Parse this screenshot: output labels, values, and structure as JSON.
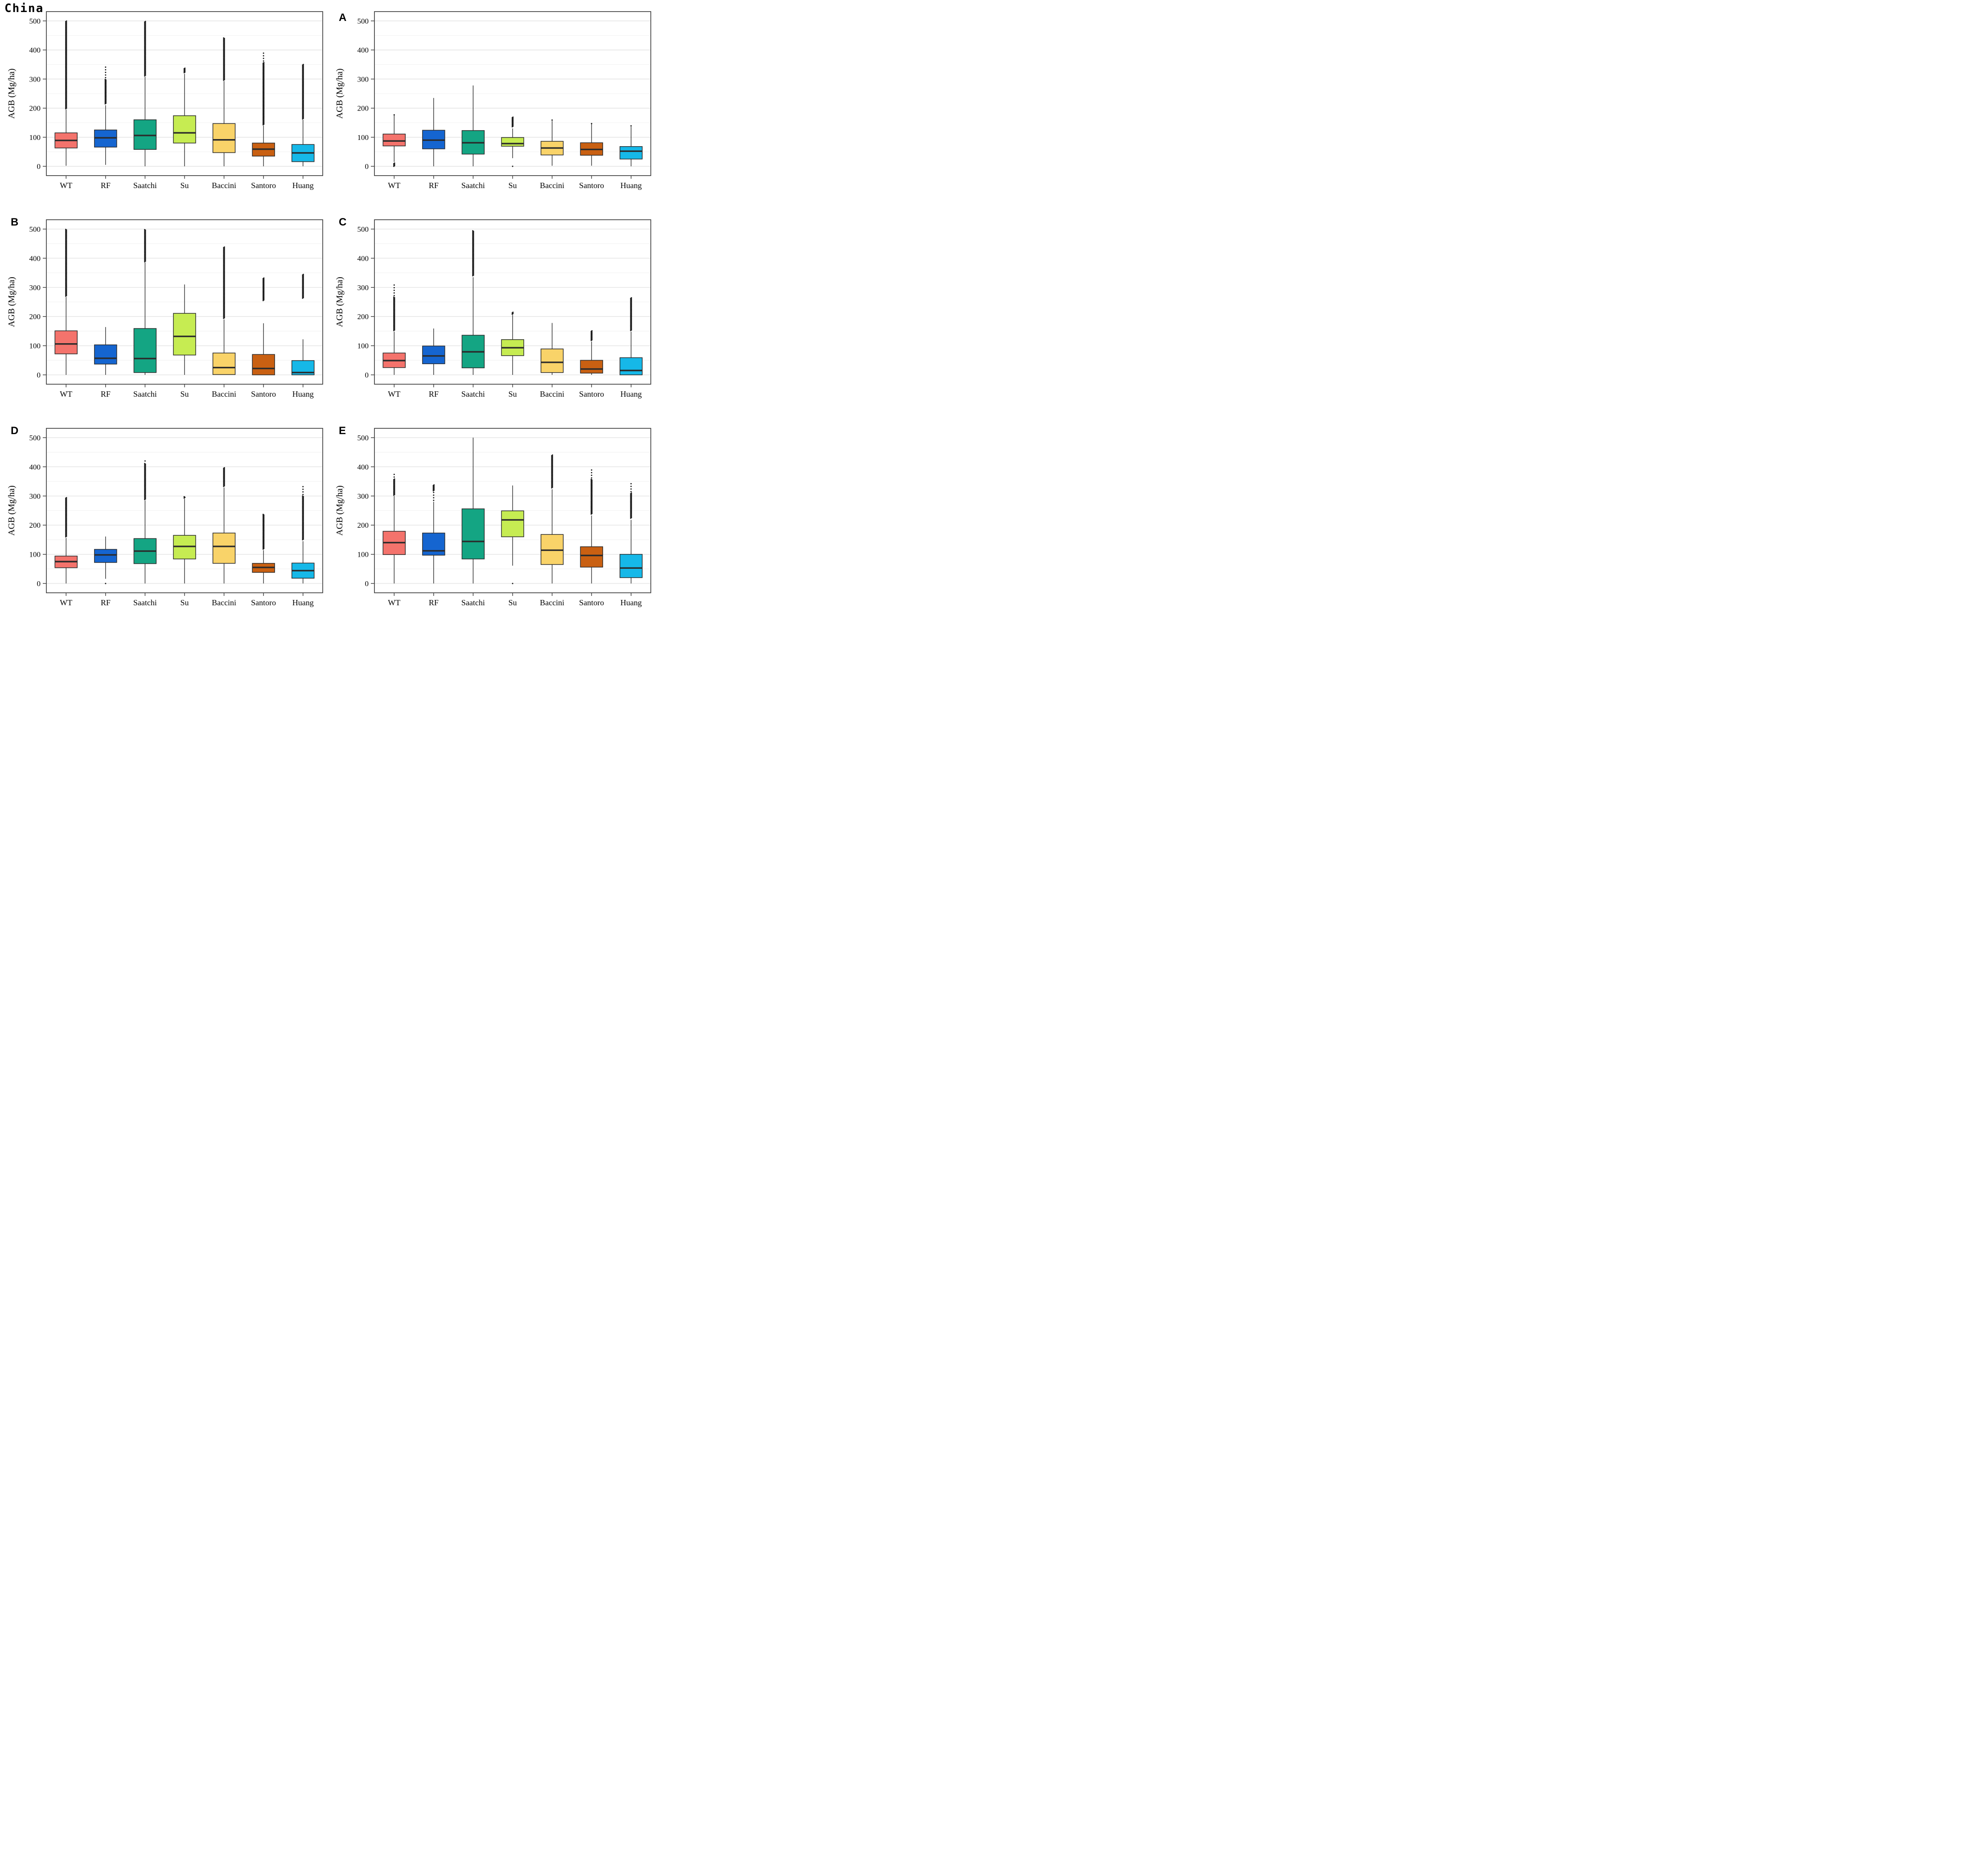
{
  "figure": {
    "ylabel": "AGB (Mg/ha)",
    "y_ticks": [
      0,
      100,
      200,
      300,
      400,
      500
    ],
    "ylim": [
      -32,
      532
    ],
    "categories": [
      "WT",
      "RF",
      "Saatchi",
      "Su",
      "Baccini",
      "Santoro",
      "Huang"
    ],
    "method_colors": {
      "WT": "#F4736C",
      "RF": "#1565D0",
      "Saatchi": "#14A583",
      "Su": "#C6EC52",
      "Baccini": "#F9D369",
      "Santoro": "#C96012",
      "Huang": "#16B8E8"
    },
    "grid_major_color": "#E3E3E3",
    "grid_minor_color": "#F1F1F1",
    "frame_color": "#3F3F3F",
    "median_color": "#2B2B2B"
  },
  "chart_data": [
    {
      "label": "China",
      "type": "box",
      "boxes": [
        {
          "method": "WT",
          "whisker_low": 2,
          "q1": 63,
          "median": 89,
          "q3": 115,
          "whisker_high": 195,
          "outliers_high": [
            [
              198,
              500,
              "dense"
            ]
          ],
          "outliers_low": []
        },
        {
          "method": "RF",
          "whisker_low": 5,
          "q1": 66,
          "median": 98,
          "q3": 125,
          "whisker_high": 210,
          "outliers_high": [
            [
              215,
              300,
              "dense"
            ],
            [
              305,
              345,
              "sparse"
            ]
          ],
          "outliers_low": []
        },
        {
          "method": "Saatchi",
          "whisker_low": 0,
          "q1": 58,
          "median": 106,
          "q3": 160,
          "whisker_high": 308,
          "outliers_high": [
            [
              311,
              500,
              "dense"
            ]
          ],
          "outliers_low": []
        },
        {
          "method": "Su",
          "whisker_low": 0,
          "q1": 80,
          "median": 115,
          "q3": 174,
          "whisker_high": 318,
          "outliers_high": [
            [
              322,
              338,
              "dense"
            ]
          ],
          "outliers_low": []
        },
        {
          "method": "Baccini",
          "whisker_low": 0,
          "q1": 47,
          "median": 91,
          "q3": 147,
          "whisker_high": 293,
          "outliers_high": [
            [
              296,
              442,
              "dense"
            ]
          ],
          "outliers_low": []
        },
        {
          "method": "Santoro",
          "whisker_low": 0,
          "q1": 35,
          "median": 59,
          "q3": 80,
          "whisker_high": 140,
          "outliers_high": [
            [
              143,
              357,
              "dense"
            ],
            [
              362,
              394,
              "sparse"
            ]
          ],
          "outliers_low": []
        },
        {
          "method": "Huang",
          "whisker_low": 0,
          "q1": 16,
          "median": 46,
          "q3": 75,
          "whisker_high": 160,
          "outliers_high": [
            [
              163,
              352,
              "dense"
            ]
          ],
          "outliers_low": []
        }
      ]
    },
    {
      "label": "A",
      "type": "box",
      "boxes": [
        {
          "method": "WT",
          "whisker_low": 15,
          "q1": 70,
          "median": 87,
          "q3": 111,
          "whisker_high": 175,
          "outliers_high": [
            [
              177,
              181,
              "sparse"
            ]
          ],
          "outliers_low": [
            [
              0,
              12,
              "dense"
            ]
          ]
        },
        {
          "method": "RF",
          "whisker_low": 0,
          "q1": 60,
          "median": 90,
          "q3": 124,
          "whisker_high": 235,
          "outliers_high": [],
          "outliers_low": []
        },
        {
          "method": "Saatchi",
          "whisker_low": 0,
          "q1": 42,
          "median": 81,
          "q3": 123,
          "whisker_high": 278,
          "outliers_high": [],
          "outliers_low": []
        },
        {
          "method": "Su",
          "whisker_low": 28,
          "q1": 69,
          "median": 78,
          "q3": 99,
          "whisker_high": 130,
          "outliers_high": [
            [
              136,
              170,
              "dense"
            ]
          ],
          "outliers_low": [
            [
              0,
              1,
              "sparse"
            ]
          ]
        },
        {
          "method": "Baccini",
          "whisker_low": 2,
          "q1": 39,
          "median": 63,
          "q3": 86,
          "whisker_high": 156,
          "outliers_high": [
            [
              159,
              161,
              "sparse"
            ]
          ],
          "outliers_low": []
        },
        {
          "method": "Santoro",
          "whisker_low": 2,
          "q1": 38,
          "median": 58,
          "q3": 81,
          "whisker_high": 145,
          "outliers_high": [
            [
              147,
              150,
              "sparse"
            ]
          ],
          "outliers_low": []
        },
        {
          "method": "Huang",
          "whisker_low": 0,
          "q1": 25,
          "median": 52,
          "q3": 68,
          "whisker_high": 136,
          "outliers_high": [
            [
              139,
              147,
              "sparse"
            ]
          ],
          "outliers_low": []
        }
      ]
    },
    {
      "label": "B",
      "type": "box",
      "boxes": [
        {
          "method": "WT",
          "whisker_low": 0,
          "q1": 72,
          "median": 106,
          "q3": 151,
          "whisker_high": 267,
          "outliers_high": [
            [
              270,
              500,
              "dense"
            ]
          ],
          "outliers_low": []
        },
        {
          "method": "RF",
          "whisker_low": 0,
          "q1": 37,
          "median": 57,
          "q3": 103,
          "whisker_high": 164,
          "outliers_high": [],
          "outliers_low": []
        },
        {
          "method": "Saatchi",
          "whisker_low": 0,
          "q1": 8,
          "median": 56,
          "q3": 159,
          "whisker_high": 385,
          "outliers_high": [
            [
              388,
              500,
              "dense"
            ]
          ],
          "outliers_low": []
        },
        {
          "method": "Su",
          "whisker_low": 0,
          "q1": 68,
          "median": 132,
          "q3": 211,
          "whisker_high": 310,
          "outliers_high": [],
          "outliers_low": []
        },
        {
          "method": "Baccini",
          "whisker_low": 2,
          "q1": 1,
          "median": 25,
          "q3": 75,
          "whisker_high": 190,
          "outliers_high": [
            [
              194,
              440,
              "dense"
            ]
          ],
          "outliers_low": []
        },
        {
          "method": "Santoro",
          "whisker_low": 0,
          "q1": 0,
          "median": 22,
          "q3": 70,
          "whisker_high": 177,
          "outliers_high": [
            [
              255,
              332,
              "dense"
            ]
          ],
          "outliers_low": []
        },
        {
          "method": "Huang",
          "whisker_low": 0,
          "q1": 0,
          "median": 8,
          "q3": 49,
          "whisker_high": 122,
          "outliers_high": [
            [
              263,
              345,
              "dense"
            ]
          ],
          "outliers_low": []
        }
      ]
    },
    {
      "label": "C",
      "type": "box",
      "boxes": [
        {
          "method": "WT",
          "whisker_low": 0,
          "q1": 25,
          "median": 49,
          "q3": 75,
          "whisker_high": 148,
          "outliers_high": [
            [
              152,
              268,
              "dense"
            ],
            [
              272,
              310,
              "sparse"
            ]
          ],
          "outliers_low": []
        },
        {
          "method": "RF",
          "whisker_low": 0,
          "q1": 38,
          "median": 65,
          "q3": 99,
          "whisker_high": 159,
          "outliers_high": [],
          "outliers_low": []
        },
        {
          "method": "Saatchi",
          "whisker_low": 0,
          "q1": 24,
          "median": 79,
          "q3": 136,
          "whisker_high": 335,
          "outliers_high": [
            [
              340,
              495,
              "dense"
            ]
          ],
          "outliers_low": []
        },
        {
          "method": "Su",
          "whisker_low": 0,
          "q1": 66,
          "median": 93,
          "q3": 121,
          "whisker_high": 205,
          "outliers_high": [
            [
              208,
              216,
              "dense"
            ]
          ],
          "outliers_low": []
        },
        {
          "method": "Baccini",
          "whisker_low": 0,
          "q1": 8,
          "median": 43,
          "q3": 89,
          "whisker_high": 178,
          "outliers_high": [],
          "outliers_low": []
        },
        {
          "method": "Santoro",
          "whisker_low": 0,
          "q1": 6,
          "median": 20,
          "q3": 50,
          "whisker_high": 114,
          "outliers_high": [
            [
              118,
              153,
              "dense"
            ]
          ],
          "outliers_low": []
        },
        {
          "method": "Huang",
          "whisker_low": 0,
          "q1": 0,
          "median": 15,
          "q3": 59,
          "whisker_high": 148,
          "outliers_high": [
            [
              152,
              265,
              "dense"
            ]
          ],
          "outliers_low": []
        }
      ]
    },
    {
      "label": "D",
      "type": "box",
      "boxes": [
        {
          "method": "WT",
          "whisker_low": 0,
          "q1": 54,
          "median": 75,
          "q3": 94,
          "whisker_high": 156,
          "outliers_high": [
            [
              160,
              295,
              "dense"
            ]
          ],
          "outliers_low": []
        },
        {
          "method": "RF",
          "whisker_low": 16,
          "q1": 72,
          "median": 98,
          "q3": 117,
          "whisker_high": 161,
          "outliers_high": [],
          "outliers_low": [
            [
              0,
              1,
              "sparse"
            ]
          ]
        },
        {
          "method": "Saatchi",
          "whisker_low": 0,
          "q1": 68,
          "median": 111,
          "q3": 154,
          "whisker_high": 285,
          "outliers_high": [
            [
              288,
              412,
              "dense"
            ],
            [
              420,
              428,
              "sparse"
            ]
          ],
          "outliers_low": []
        },
        {
          "method": "Su",
          "whisker_low": 0,
          "q1": 84,
          "median": 127,
          "q3": 165,
          "whisker_high": 290,
          "outliers_high": [
            [
              293,
              299,
              "dense"
            ]
          ],
          "outliers_low": []
        },
        {
          "method": "Baccini",
          "whisker_low": 0,
          "q1": 69,
          "median": 127,
          "q3": 173,
          "whisker_high": 329,
          "outliers_high": [
            [
              333,
              398,
              "dense"
            ]
          ],
          "outliers_low": []
        },
        {
          "method": "Santoro",
          "whisker_low": 0,
          "q1": 38,
          "median": 55,
          "q3": 69,
          "whisker_high": 114,
          "outliers_high": [
            [
              118,
              237,
              "dense"
            ]
          ],
          "outliers_low": []
        },
        {
          "method": "Huang",
          "whisker_low": 0,
          "q1": 18,
          "median": 44,
          "q3": 70,
          "whisker_high": 145,
          "outliers_high": [
            [
              150,
              300,
              "dense"
            ],
            [
              305,
              334,
              "sparse"
            ]
          ],
          "outliers_low": []
        }
      ]
    },
    {
      "label": "E",
      "type": "box",
      "boxes": [
        {
          "method": "WT",
          "whisker_low": 0,
          "q1": 99,
          "median": 140,
          "q3": 179,
          "whisker_high": 300,
          "outliers_high": [
            [
              303,
              360,
              "dense"
            ],
            [
              365,
              378,
              "sparse"
            ]
          ],
          "outliers_low": []
        },
        {
          "method": "RF",
          "whisker_low": 0,
          "q1": 97,
          "median": 112,
          "q3": 173,
          "whisker_high": 280,
          "outliers_high": [
            [
              285,
              315,
              "sparse"
            ],
            [
              318,
              338,
              "dense"
            ]
          ],
          "outliers_low": []
        },
        {
          "method": "Saatchi",
          "whisker_low": 0,
          "q1": 84,
          "median": 144,
          "q3": 256,
          "whisker_high": 500,
          "outliers_high": [],
          "outliers_low": []
        },
        {
          "method": "Su",
          "whisker_low": 61,
          "q1": 160,
          "median": 218,
          "q3": 249,
          "whisker_high": 336,
          "outliers_high": [],
          "outliers_low": [
            [
              0,
              1,
              "sparse"
            ]
          ]
        },
        {
          "method": "Baccini",
          "whisker_low": 0,
          "q1": 65,
          "median": 114,
          "q3": 168,
          "whisker_high": 323,
          "outliers_high": [
            [
              328,
              441,
              "dense"
            ]
          ],
          "outliers_low": []
        },
        {
          "method": "Santoro",
          "whisker_low": 0,
          "q1": 56,
          "median": 96,
          "q3": 126,
          "whisker_high": 233,
          "outliers_high": [
            [
              238,
              358,
              "dense"
            ],
            [
              362,
              391,
              "sparse"
            ]
          ],
          "outliers_low": []
        },
        {
          "method": "Huang",
          "whisker_low": 0,
          "q1": 20,
          "median": 53,
          "q3": 100,
          "whisker_high": 218,
          "outliers_high": [
            [
              224,
              310,
              "dense"
            ],
            [
              315,
              348,
              "sparse"
            ]
          ],
          "outliers_low": []
        }
      ]
    }
  ]
}
